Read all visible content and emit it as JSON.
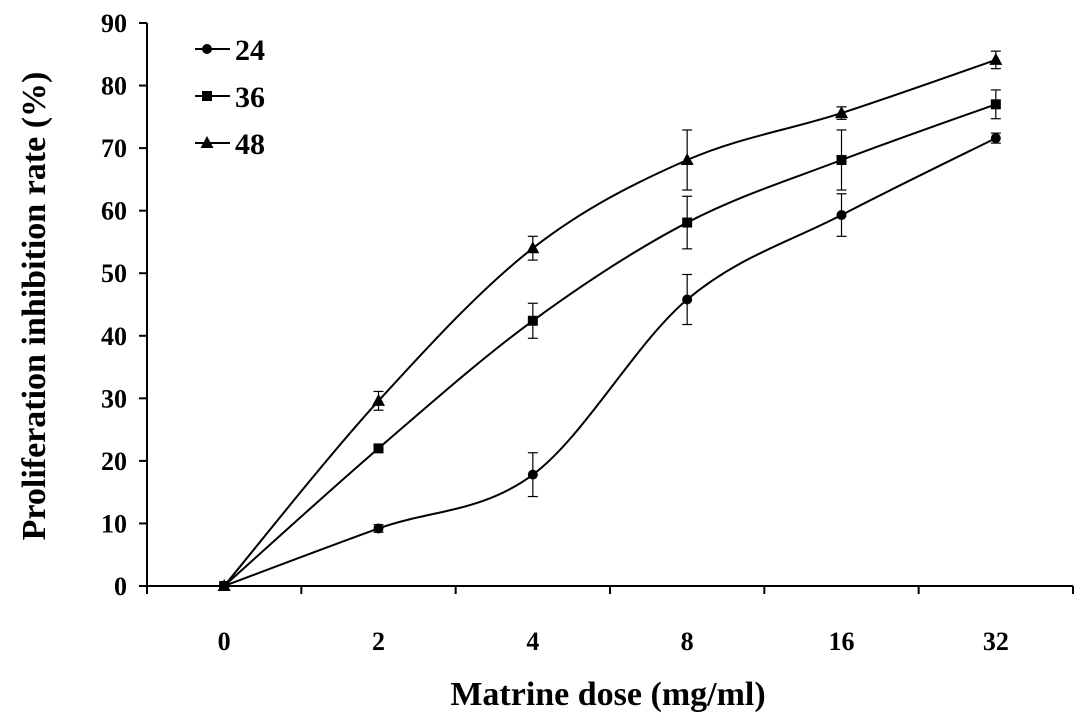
{
  "chart_data": {
    "type": "line",
    "xlabel": "Matrine dose (mg/ml)",
    "ylabel": "Proliferation inhibition rate (%)",
    "categories": [
      "0",
      "2",
      "4",
      "8",
      "16",
      "32"
    ],
    "ylim": [
      0,
      90
    ],
    "yticks": [
      "0",
      "10",
      "20",
      "30",
      "40",
      "50",
      "60",
      "70",
      "80",
      "90"
    ],
    "legend_position": "top-left",
    "grid": false,
    "series": [
      {
        "name": "24",
        "marker": "circle",
        "values": [
          0,
          9.2,
          17.8,
          45.8,
          59.3,
          71.6
        ],
        "errors": [
          0,
          0.6,
          3.5,
          4.0,
          3.4,
          0.8
        ]
      },
      {
        "name": "36",
        "marker": "square",
        "values": [
          0,
          22.0,
          42.4,
          58.1,
          68.1,
          77.0
        ],
        "errors": [
          0,
          0.5,
          2.8,
          4.2,
          4.8,
          2.3
        ]
      },
      {
        "name": "48",
        "marker": "triangle",
        "values": [
          0,
          29.6,
          54.0,
          68.1,
          75.6,
          84.1
        ],
        "errors": [
          0,
          1.5,
          1.9,
          4.8,
          1.0,
          1.4
        ]
      }
    ]
  }
}
